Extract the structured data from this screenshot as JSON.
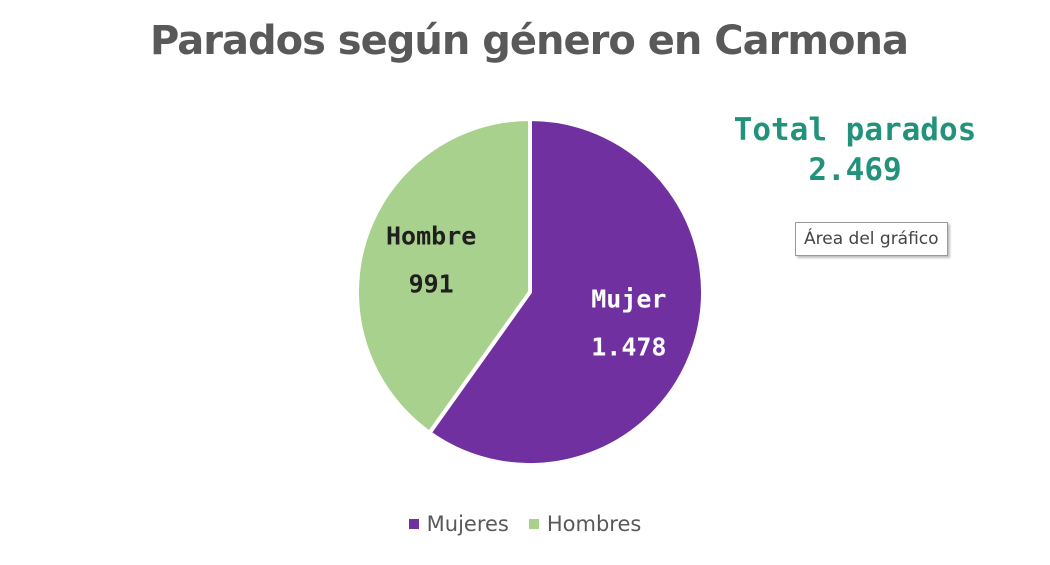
{
  "chart_data": {
    "type": "pie",
    "title": "Parados según género en Carmona",
    "slices": [
      {
        "name": "Mujeres",
        "slice_label": "Mujer",
        "value": 1478,
        "value_label": "1.478",
        "color": "#7030a0",
        "label_color": "#ffffff"
      },
      {
        "name": "Hombres",
        "slice_label": "Hombre",
        "value": 991,
        "value_label": "991",
        "color": "#a9d18e",
        "label_color": "#1f1f1f"
      }
    ],
    "legend_placement": "bottom"
  },
  "total": {
    "label": "Total parados",
    "value": "2.469",
    "color": "#23927a"
  },
  "tooltip": {
    "text": "Área del gráfico"
  }
}
